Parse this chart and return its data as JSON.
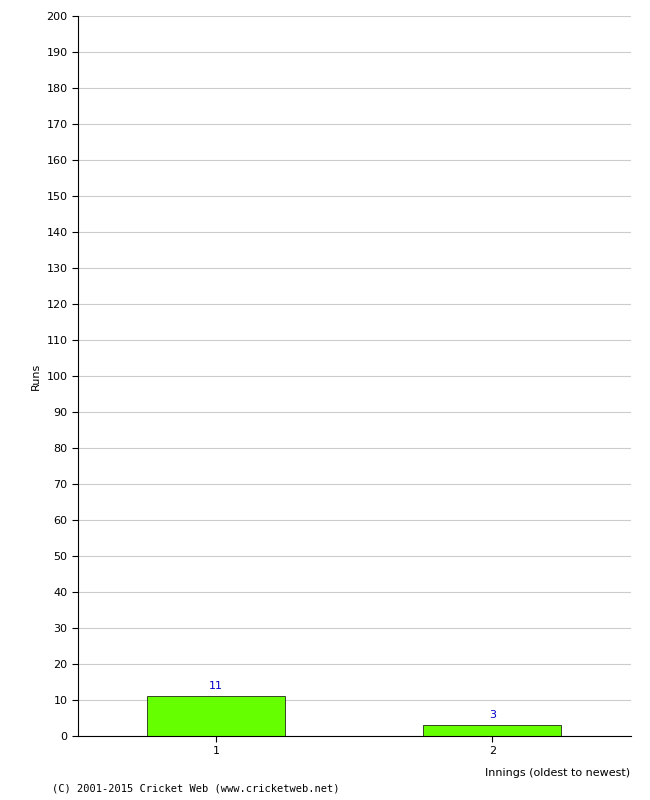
{
  "categories": [
    1,
    2
  ],
  "values": [
    11,
    3
  ],
  "bar_color": "#66ff00",
  "bar_edge_color": "#000000",
  "ylabel": "Runs",
  "xlabel": "Innings (oldest to newest)",
  "ylim": [
    0,
    200
  ],
  "ytick_step": 10,
  "annotation_color": "#0000cc",
  "annotation_fontsize": 8,
  "footer": "(C) 2001-2015 Cricket Web (www.cricketweb.net)",
  "background_color": "#ffffff",
  "grid_color": "#cccccc",
  "bar_width": 0.5
}
